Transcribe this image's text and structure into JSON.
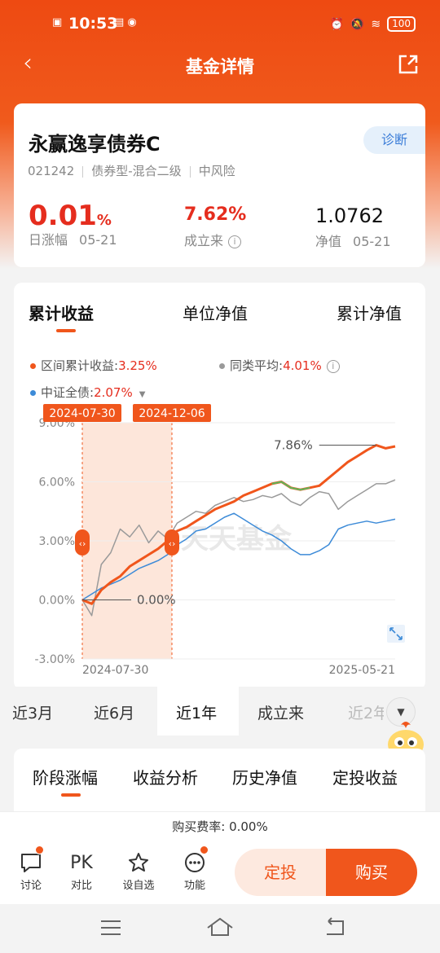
{
  "status_bar": {
    "time": "10:53",
    "battery": "100"
  },
  "nav": {
    "title": "基金详情"
  },
  "fund": {
    "name": "永赢逸享债券C",
    "diagnose_label": "诊断",
    "code": "021242",
    "type": "债券型-混合二级",
    "risk": "中风险",
    "daily_change": "0.01",
    "daily_change_unit": "%",
    "daily_label": "日涨幅",
    "daily_date": "05-21",
    "since_inception": "7.62%",
    "since_label": "成立来",
    "nav_value": "1.0762",
    "nav_label": "净值",
    "nav_date": "05-21"
  },
  "chart_tabs": [
    "累计收益",
    "单位净值",
    "累计净值"
  ],
  "legend": {
    "fund_label": "区间累计收益:",
    "fund_value": "3.25%",
    "peer_label": "同类平均:",
    "peer_value": "4.01%",
    "bench_label": "中证全债:",
    "bench_value": "2.07%"
  },
  "range_tags": {
    "start": "2024-07-30",
    "end": "2024-12-06"
  },
  "annotations": {
    "max": "7.86%",
    "zero": "0.00%"
  },
  "watermark": "天天基金",
  "colors": {
    "fund": "#f0561c",
    "peer": "#9a9a9a",
    "bench": "#3d8bd8",
    "highlight": "#5cb85c"
  },
  "chart_data": {
    "type": "line",
    "yticks": [
      "9.00%",
      "6.00%",
      "3.00%",
      "0.00%",
      "-3.00%"
    ],
    "ylim": [
      -3,
      9
    ],
    "x_start_label": "2024-07-30",
    "x_end_label": "2025-05-21",
    "series": [
      {
        "name": "区间累计收益",
        "values": [
          0.0,
          -0.2,
          0.5,
          0.9,
          1.2,
          1.7,
          2.0,
          2.3,
          2.6,
          3.0,
          3.5,
          3.7,
          4.0,
          4.3,
          4.6,
          4.8,
          5.0,
          5.3,
          5.5,
          5.7,
          5.9,
          6.0,
          5.7,
          5.6,
          5.7,
          5.8,
          6.2,
          6.6,
          7.0,
          7.3,
          7.6,
          7.86,
          7.7,
          7.8
        ]
      },
      {
        "name": "同类平均",
        "values": [
          0.0,
          -0.8,
          1.8,
          2.4,
          3.6,
          3.2,
          3.8,
          2.9,
          3.5,
          3.1,
          3.9,
          4.2,
          4.5,
          4.4,
          4.8,
          5.0,
          5.2,
          5.0,
          5.1,
          5.3,
          5.2,
          5.4,
          5.0,
          4.8,
          5.2,
          5.5,
          5.4,
          4.6,
          5.0,
          5.3,
          5.6,
          5.9,
          5.9,
          6.1
        ]
      },
      {
        "name": "中证全债",
        "values": [
          0.0,
          0.3,
          0.6,
          0.8,
          1.0,
          1.3,
          1.6,
          1.8,
          2.0,
          2.3,
          2.8,
          3.1,
          3.5,
          3.6,
          3.9,
          4.2,
          4.4,
          4.1,
          3.8,
          3.5,
          3.3,
          3.0,
          2.6,
          2.3,
          2.3,
          2.5,
          2.8,
          3.6,
          3.8,
          3.9,
          4.0,
          3.9,
          4.0,
          4.1
        ]
      }
    ]
  },
  "range_buttons": [
    "近3月",
    "近6月",
    "近1年",
    "成立来",
    "近2年"
  ],
  "section_tabs": [
    "阶段涨幅",
    "收益分析",
    "历史净值",
    "定投收益"
  ],
  "fee": "购买费率: 0.00%",
  "toolbar": {
    "discuss": "讨论",
    "pk_glyph": "PK",
    "compare": "对比",
    "watch": "设自选",
    "func": "功能",
    "dingtou": "定投",
    "buy": "购买"
  }
}
